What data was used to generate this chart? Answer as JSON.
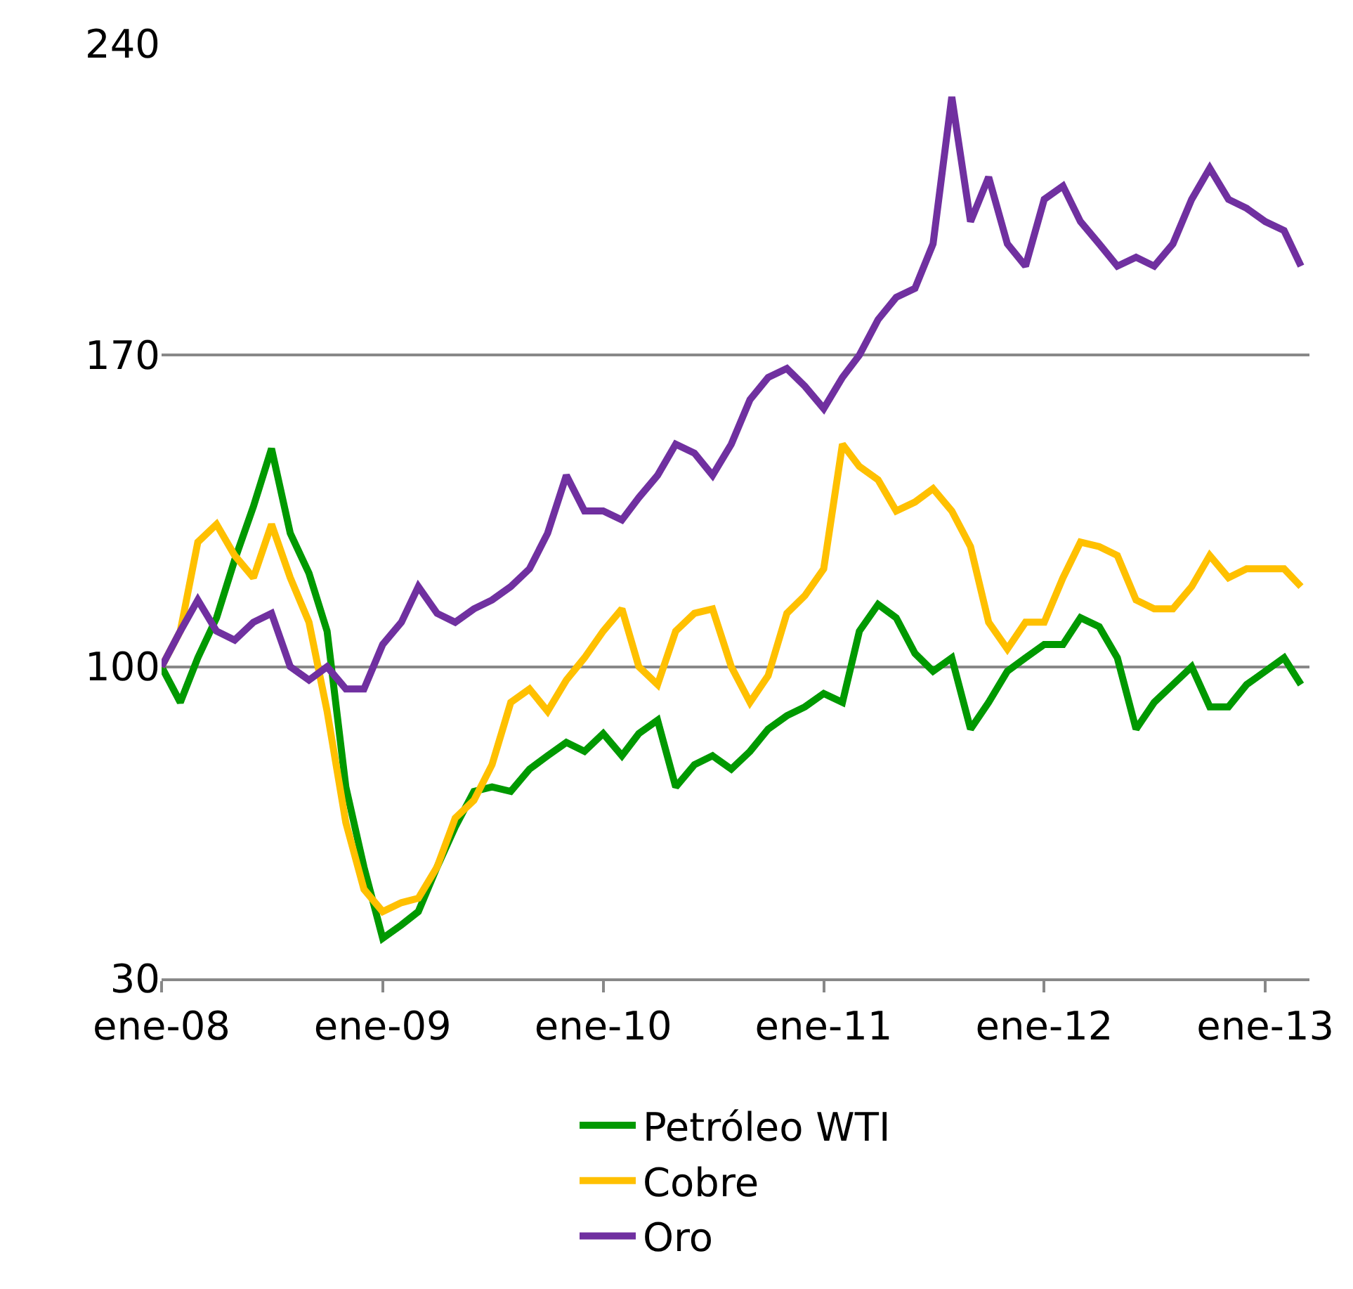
{
  "chart_data": {
    "type": "line",
    "x": [
      "2008-01",
      "2008-02",
      "2008-03",
      "2008-04",
      "2008-05",
      "2008-06",
      "2008-07",
      "2008-08",
      "2008-09",
      "2008-10",
      "2008-11",
      "2008-12",
      "2009-01",
      "2009-02",
      "2009-03",
      "2009-04",
      "2009-05",
      "2009-06",
      "2009-07",
      "2009-08",
      "2009-09",
      "2009-10",
      "2009-11",
      "2009-12",
      "2010-01",
      "2010-02",
      "2010-03",
      "2010-04",
      "2010-05",
      "2010-06",
      "2010-07",
      "2010-08",
      "2010-09",
      "2010-10",
      "2010-11",
      "2010-12",
      "2011-01",
      "2011-02",
      "2011-03",
      "2011-04",
      "2011-05",
      "2011-06",
      "2011-07",
      "2011-08",
      "2011-09",
      "2011-10",
      "2011-11",
      "2011-12",
      "2012-01",
      "2012-02",
      "2012-03",
      "2012-04",
      "2012-05",
      "2012-06",
      "2012-07",
      "2012-08",
      "2012-09",
      "2012-10",
      "2012-11",
      "2012-12",
      "2013-01",
      "2013-02",
      "2013-03"
    ],
    "series": [
      {
        "name": "Petróleo WTI",
        "color": "#009900",
        "values": [
          100,
          92,
          102,
          111,
          124,
          136,
          149,
          130,
          121,
          108,
          73,
          55,
          39,
          42,
          45,
          55,
          64,
          72,
          73,
          72,
          77,
          80,
          83,
          81,
          85,
          80,
          85,
          88,
          73,
          78,
          80,
          77,
          81,
          86,
          89,
          91,
          94,
          92,
          108,
          114,
          111,
          103,
          99,
          102,
          86,
          92,
          99,
          102,
          105,
          105,
          111,
          109,
          102,
          86,
          92,
          96,
          100,
          91,
          91,
          96,
          99,
          102,
          96
        ]
      },
      {
        "name": "Cobre",
        "color": "#ffc000",
        "values": [
          100,
          108,
          128,
          132,
          125,
          120,
          132,
          120,
          110,
          90,
          65,
          50,
          45,
          47,
          48,
          55,
          66,
          70,
          78,
          92,
          95,
          90,
          97,
          102,
          108,
          113,
          100,
          96,
          108,
          112,
          113,
          100,
          92,
          98,
          112,
          116,
          122,
          150,
          145,
          142,
          135,
          137,
          140,
          135,
          127,
          110,
          104,
          110,
          110,
          120,
          128,
          127,
          125,
          115,
          113,
          113,
          118,
          125,
          120,
          122,
          122,
          122,
          118
        ]
      },
      {
        "name": "Oro",
        "color": "#7030a0",
        "values": [
          100,
          108,
          115,
          108,
          106,
          110,
          112,
          100,
          97,
          100,
          95,
          95,
          105,
          110,
          118,
          112,
          110,
          113,
          115,
          118,
          122,
          130,
          143,
          135,
          135,
          133,
          138,
          143,
          150,
          148,
          143,
          150,
          160,
          165,
          167,
          163,
          158,
          165,
          170,
          178,
          183,
          185,
          195,
          228,
          200,
          210,
          195,
          190,
          205,
          208,
          200,
          195,
          190,
          192,
          190,
          195,
          205,
          212,
          205,
          203,
          200,
          198,
          190
        ]
      }
    ],
    "xlim": [
      "2008-01-01",
      "2013-03-15"
    ],
    "xticks": [
      {
        "value": "2008-01",
        "label": "ene-08"
      },
      {
        "value": "2009-01",
        "label": "ene-09"
      },
      {
        "value": "2010-01",
        "label": "ene-10"
      },
      {
        "value": "2011-01",
        "label": "ene-11"
      },
      {
        "value": "2012-01",
        "label": "ene-12"
      },
      {
        "value": "2013-01",
        "label": "ene-13"
      }
    ],
    "ylim": [
      30,
      240
    ],
    "yticks": [
      30,
      100,
      170,
      240
    ],
    "grid": "y",
    "legend": "bottom",
    "marker": "none",
    "line_style": "solid"
  }
}
